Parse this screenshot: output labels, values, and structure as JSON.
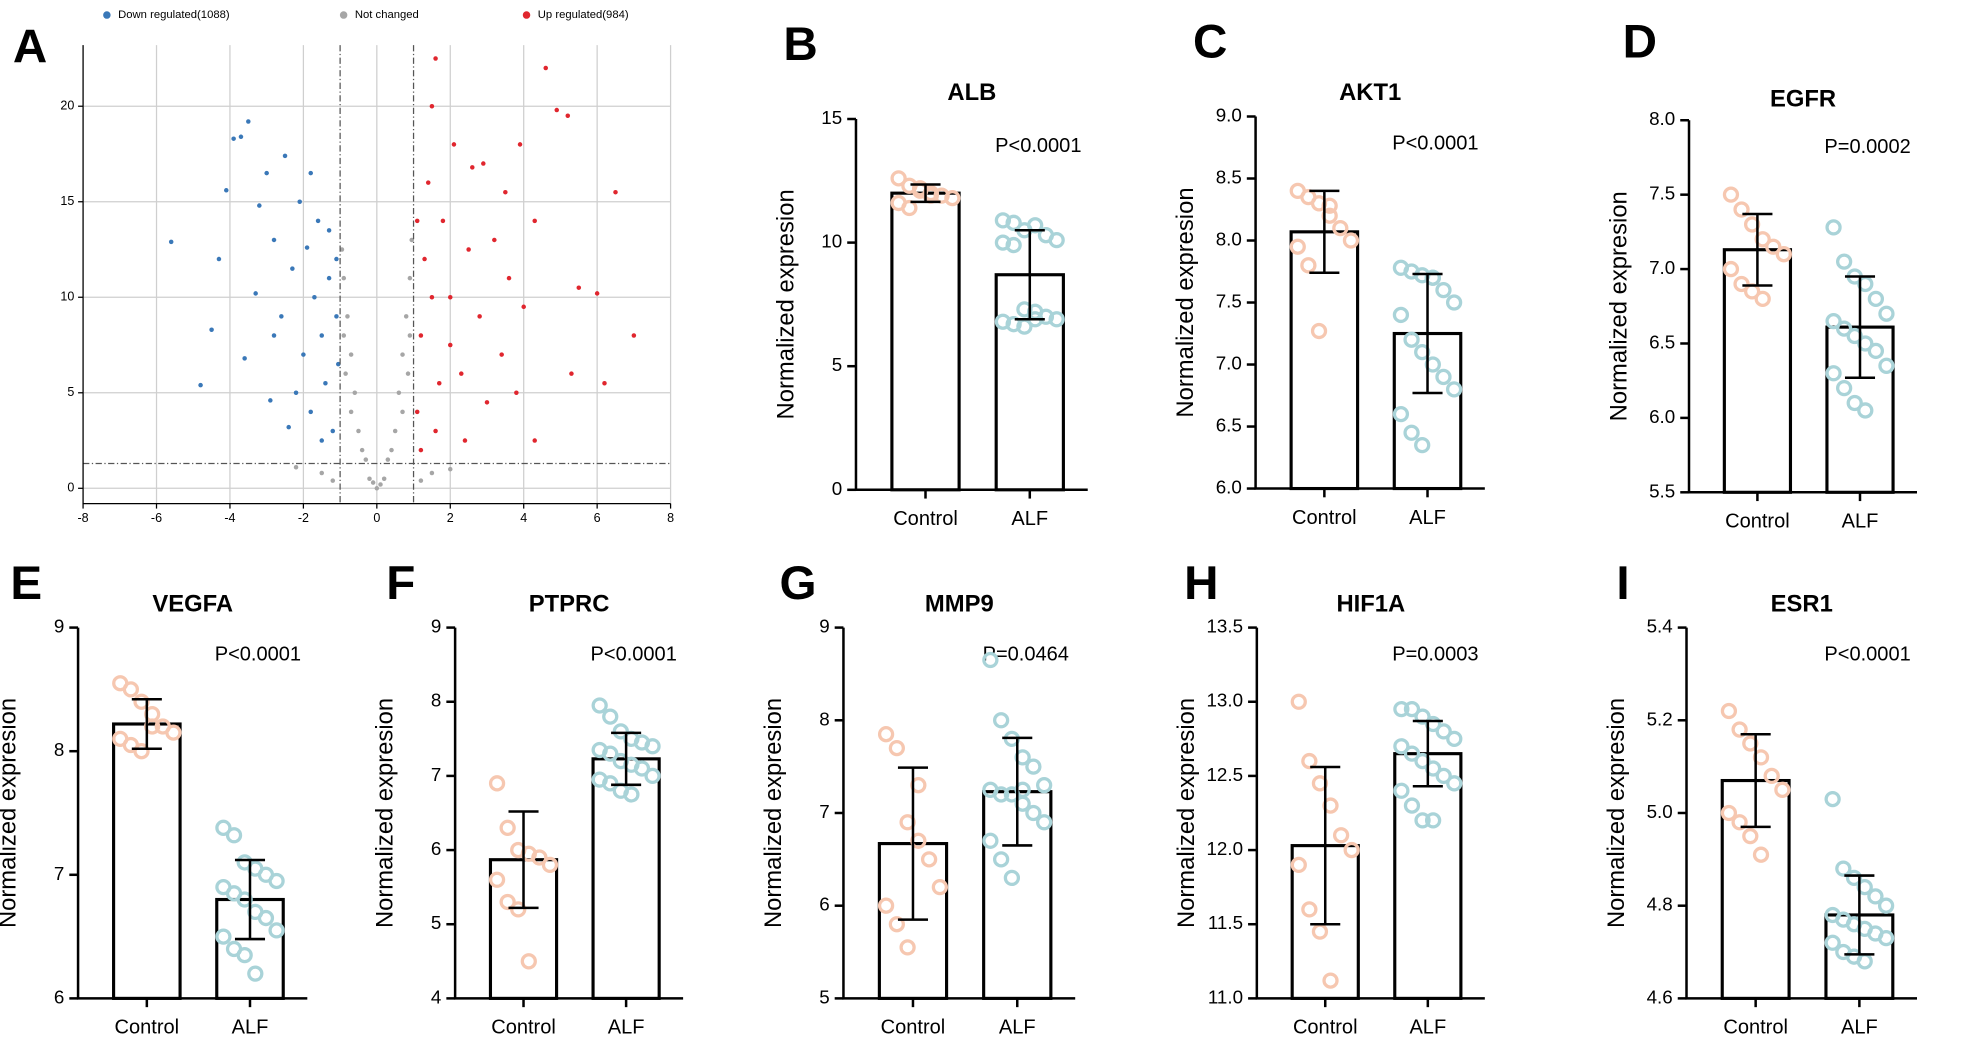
{
  "chart_data": [
    {
      "type": "scatter",
      "panel": "A",
      "legend": "top",
      "grid": true,
      "xlim": [
        -8,
        8
      ],
      "xticks": [
        -8,
        -6,
        -4,
        -2,
        0,
        2,
        4,
        6,
        8
      ],
      "ylim": [
        -0.8,
        23.2
      ],
      "yticks": [
        0,
        5,
        10,
        15,
        20
      ],
      "thresholds": {
        "x": [
          -1,
          1
        ],
        "y": 1.3
      },
      "series": [
        {
          "name": "Down regulated(1088)",
          "color": "#3a78b8",
          "x": [
            -5.6,
            -4.8,
            -4.3,
            -4.1,
            -3.9,
            -3.5,
            -3.7,
            -3.2,
            -3,
            -2.8,
            -2.5,
            -2.6,
            -2.3,
            -2.1,
            -2,
            -1.9,
            -1.8,
            -1.7,
            -1.6,
            -1.5,
            -1.4,
            -1.3,
            -1.2,
            -1.1,
            -1.05,
            -2.8,
            -3.3,
            -2.2,
            -1.5,
            -1.3,
            -3.6,
            -2.9,
            -1.8,
            -1.1,
            -4.5,
            -2.4
          ],
          "values": [
            12.9,
            5.4,
            12,
            15.6,
            18.3,
            19.2,
            18.4,
            14.8,
            16.5,
            13,
            17.4,
            9,
            11.5,
            15,
            7,
            12.6,
            4,
            10,
            14,
            8,
            5.5,
            11,
            3,
            9,
            6.5,
            8,
            10.2,
            5,
            2.5,
            13.5,
            6.8,
            4.6,
            16.5,
            12,
            8.3,
            3.2
          ]
        },
        {
          "name": "Not changed",
          "color": "#a6a6a6",
          "x": [
            0,
            0.2,
            -0.2,
            0.3,
            -0.3,
            0.5,
            -0.5,
            0.6,
            -0.6,
            0.7,
            -0.7,
            0.8,
            -0.8,
            0.9,
            -0.9,
            0.95,
            -0.95,
            0.4,
            -0.4,
            0.1,
            -0.1,
            0.7,
            -0.7,
            0.85,
            -0.85,
            0.9,
            -0.9,
            1.5,
            -1.5,
            2,
            -2.2,
            1.2,
            -1.2
          ],
          "values": [
            0,
            0.5,
            0.5,
            1.5,
            1.5,
            3,
            3,
            5,
            5,
            7,
            7,
            9,
            9,
            11,
            11,
            13,
            12.5,
            2,
            2,
            0.2,
            0.3,
            4,
            4,
            6,
            6,
            8,
            8,
            0.8,
            0.8,
            1,
            1.1,
            0.4,
            0.4
          ]
        },
        {
          "name": "Up regulated(984)",
          "color": "#e0262e",
          "x": [
            1.1,
            1.2,
            1.3,
            1.4,
            1.5,
            1.6,
            1.8,
            2,
            2.1,
            2.3,
            2.5,
            2.6,
            2.8,
            3,
            3.2,
            3.4,
            3.6,
            3.8,
            4,
            4.3,
            4.6,
            4.9,
            5.2,
            5.5,
            5.3,
            6,
            6.2,
            6.5,
            7,
            1.2,
            1.6,
            2.4,
            1.5,
            1.1,
            2.9,
            3.5,
            4.3,
            3.9,
            2,
            1.7
          ],
          "values": [
            4,
            8,
            12,
            16,
            20,
            22.5,
            14,
            10,
            18,
            6,
            12.5,
            16.8,
            9,
            4.5,
            13,
            7,
            11,
            5,
            9.5,
            14,
            22,
            19.8,
            19.5,
            10.5,
            6,
            10.2,
            5.5,
            15.5,
            8,
            2,
            3,
            2.5,
            10,
            14,
            17,
            15.5,
            2.5,
            18,
            7.5,
            5.5
          ]
        }
      ]
    },
    {
      "type": "bar",
      "panel": "B",
      "title": "ALB",
      "ylabel": "Normalized expresion",
      "pvalue": "P<0.0001",
      "categories": [
        "Control",
        "ALF"
      ],
      "values": [
        12,
        8.7
      ],
      "errors": [
        0.35,
        1.8
      ],
      "point_colors": [
        "#f6c7b0",
        "#a9d3d8"
      ],
      "points": [
        [
          12.6,
          12.3,
          12.1,
          12.0,
          11.9,
          11.8,
          11.6,
          11.4,
          12.2,
          11.9
        ],
        [
          10.9,
          10.8,
          10.5,
          10.7,
          10.3,
          10.1,
          10.0,
          9.9,
          7.3,
          7.2,
          7.0,
          6.9,
          6.8,
          6.7,
          6.6,
          6.9
        ]
      ],
      "ylim": [
        0,
        15
      ],
      "yticks": [
        0,
        5,
        10,
        15
      ]
    },
    {
      "type": "bar",
      "panel": "C",
      "title": "AKT1",
      "ylabel": "Normalized expresion",
      "pvalue": "P<0.0001",
      "categories": [
        "Control",
        "ALF"
      ],
      "values": [
        8.07,
        7.25
      ],
      "errors": [
        0.33,
        0.48
      ],
      "point_colors": [
        "#f6c7b0",
        "#a9d3d8"
      ],
      "points": [
        [
          8.4,
          8.35,
          8.3,
          8.2,
          8.1,
          8.0,
          7.95,
          7.8,
          7.27,
          8.28
        ],
        [
          7.78,
          7.75,
          7.72,
          7.7,
          7.6,
          7.5,
          7.4,
          7.2,
          7.1,
          7.0,
          6.9,
          6.8,
          6.6,
          6.45,
          6.35,
          7.7
        ]
      ],
      "ylim": [
        6,
        9
      ],
      "yticks": [
        {
          "value": 6,
          "label": "6.0"
        },
        6.5,
        {
          "value": 7,
          "label": "7.0"
        },
        7.5,
        {
          "value": 8,
          "label": "8.0"
        },
        8.5,
        {
          "value": 9,
          "label": "9.0"
        }
      ]
    },
    {
      "type": "bar",
      "panel": "D",
      "title": "EGFR",
      "ylabel": "Normalized expresion",
      "pvalue": "P=0.0002",
      "categories": [
        "Control",
        "ALF"
      ],
      "values": [
        7.13,
        6.61
      ],
      "errors": [
        0.24,
        0.34
      ],
      "point_colors": [
        "#f6c7b0",
        "#a9d3d8"
      ],
      "points": [
        [
          7.5,
          7.4,
          7.3,
          7.2,
          7.15,
          7.1,
          7.0,
          6.9,
          6.85,
          6.8
        ],
        [
          7.28,
          7.05,
          6.95,
          6.9,
          6.8,
          6.7,
          6.65,
          6.6,
          6.55,
          6.5,
          6.45,
          6.35,
          6.3,
          6.2,
          6.1,
          6.05
        ]
      ],
      "ylim": [
        5.5,
        8
      ],
      "yticks": [
        5.5,
        {
          "value": 6,
          "label": "6.0"
        },
        6.5,
        {
          "value": 7,
          "label": "7.0"
        },
        7.5,
        {
          "value": 8,
          "label": "8.0"
        }
      ]
    },
    {
      "type": "bar",
      "panel": "E",
      "title": "VEGFA",
      "ylabel": "Normalized expresion",
      "pvalue": "P<0.0001",
      "categories": [
        "Control",
        "ALF"
      ],
      "values": [
        8.22,
        6.8
      ],
      "errors": [
        0.2,
        0.32
      ],
      "point_colors": [
        "#f6c7b0",
        "#a9d3d8"
      ],
      "points": [
        [
          8.55,
          8.5,
          8.4,
          8.3,
          8.2,
          8.15,
          8.1,
          8.05,
          8.0,
          8.2
        ],
        [
          7.38,
          7.32,
          7.1,
          7.05,
          7.0,
          6.95,
          6.9,
          6.85,
          6.8,
          6.7,
          6.65,
          6.55,
          6.5,
          6.4,
          6.35,
          6.2
        ]
      ],
      "ylim": [
        6,
        9
      ],
      "yticks": [
        6,
        7,
        8,
        9
      ]
    },
    {
      "type": "bar",
      "panel": "F",
      "title": "PTPRC",
      "ylabel": "Normalized expresion",
      "pvalue": "P<0.0001",
      "categories": [
        "Control",
        "ALF"
      ],
      "values": [
        5.87,
        7.23
      ],
      "errors": [
        0.65,
        0.35
      ],
      "point_colors": [
        "#f6c7b0",
        "#a9d3d8"
      ],
      "points": [
        [
          6.9,
          6.3,
          6.0,
          5.95,
          5.9,
          5.8,
          5.6,
          5.3,
          5.2,
          4.5
        ],
        [
          7.95,
          7.8,
          7.6,
          7.5,
          7.45,
          7.4,
          7.35,
          7.3,
          7.2,
          7.15,
          7.1,
          7.0,
          6.95,
          6.9,
          6.8,
          6.75
        ]
      ],
      "ylim": [
        4,
        9
      ],
      "yticks": [
        4,
        5,
        6,
        7,
        8,
        9
      ]
    },
    {
      "type": "bar",
      "panel": "G",
      "title": "MMP9",
      "ylabel": "Normalized expresion",
      "pvalue": "P=0.0464",
      "categories": [
        "Control",
        "ALF"
      ],
      "values": [
        6.67,
        7.23
      ],
      "errors": [
        0.82,
        0.58
      ],
      "point_colors": [
        "#f6c7b0",
        "#a9d3d8"
      ],
      "points": [
        [
          7.85,
          7.7,
          6.9,
          6.7,
          6.5,
          6.2,
          6.0,
          5.8,
          5.55,
          7.3
        ],
        [
          8.65,
          8.0,
          7.8,
          7.6,
          7.5,
          7.3,
          7.25,
          7.2,
          7.2,
          7.1,
          7.0,
          6.9,
          6.7,
          6.5,
          6.3,
          7.25
        ]
      ],
      "ylim": [
        5,
        9
      ],
      "yticks": [
        5,
        6,
        7,
        8,
        9
      ]
    },
    {
      "type": "bar",
      "panel": "H",
      "title": "HIF1A",
      "ylabel": "Normalized expresion",
      "pvalue": "P=0.0003",
      "categories": [
        "Control",
        "ALF"
      ],
      "values": [
        12.03,
        12.65
      ],
      "errors": [
        0.53,
        0.22
      ],
      "point_colors": [
        "#f6c7b0",
        "#a9d3d8"
      ],
      "points": [
        [
          13.0,
          12.6,
          12.45,
          12.3,
          12.1,
          12.0,
          11.9,
          11.6,
          11.45,
          11.12
        ],
        [
          12.95,
          12.95,
          12.9,
          12.85,
          12.8,
          12.75,
          12.7,
          12.65,
          12.6,
          12.55,
          12.5,
          12.45,
          12.4,
          12.3,
          12.2,
          12.2
        ]
      ],
      "ylim": [
        11,
        13.5
      ],
      "yticks": [
        {
          "value": 11,
          "label": "11.0"
        },
        11.5,
        {
          "value": 12,
          "label": "12.0"
        },
        12.5,
        {
          "value": 13,
          "label": "13.0"
        },
        13.5
      ]
    },
    {
      "type": "bar",
      "panel": "I",
      "title": "ESR1",
      "ylabel": "Normalized expresion",
      "pvalue": "P<0.0001",
      "categories": [
        "Control",
        "ALF"
      ],
      "values": [
        5.07,
        4.78
      ],
      "errors": [
        0.1,
        0.085
      ],
      "point_colors": [
        "#f6c7b0",
        "#a9d3d8"
      ],
      "points": [
        [
          5.22,
          5.18,
          5.15,
          5.12,
          5.08,
          5.05,
          5.0,
          4.98,
          4.95,
          4.91
        ],
        [
          5.03,
          4.88,
          4.86,
          4.84,
          4.82,
          4.8,
          4.78,
          4.77,
          4.76,
          4.75,
          4.74,
          4.73,
          4.72,
          4.7,
          4.69,
          4.68
        ]
      ],
      "ylim": [
        4.6,
        5.4
      ],
      "yticks": [
        4.6,
        4.8,
        {
          "value": 5,
          "label": "5.0"
        },
        5.2,
        5.4
      ]
    }
  ]
}
